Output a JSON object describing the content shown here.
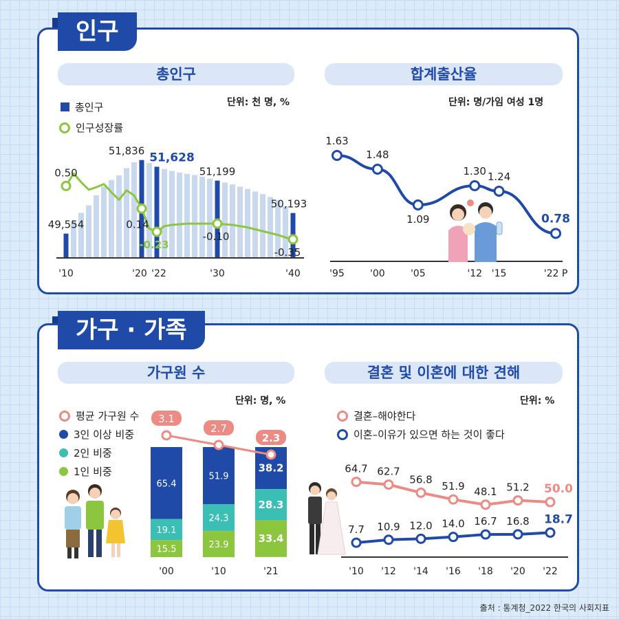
{
  "sections": {
    "population": "인구",
    "household": "가구 · 가족"
  },
  "charts": {
    "total_pop": {
      "title": "총인구",
      "unit": "단위: 천 명, %",
      "legend_bar": "총인구",
      "legend_line": "인구성장률"
    },
    "fertility": {
      "title": "합계출산율",
      "unit": "단위: 명/가임 여성 1명"
    },
    "household_size": {
      "title": "가구원 수",
      "unit": "단위: 명, %",
      "legend": [
        "평균 가구원 수",
        "3인 이상 비중",
        "2인 비중",
        "1인 비중"
      ]
    },
    "marriage": {
      "title": "결혼 및 이혼에 대한 견해",
      "unit": "단위: %",
      "legend": [
        "결혼–해야한다",
        "이혼–이유가 있으면 하는 것이 좋다"
      ]
    }
  },
  "colors": {
    "navy": "#1f4aa8",
    "light_bar": "#c8d8ee",
    "green": "#8cc63e",
    "teal": "#3bbfb4",
    "salmon": "#ec8a84"
  },
  "chart_data": [
    {
      "id": "total_pop",
      "type": "bar",
      "x_ticks": [
        "'10",
        "'20",
        "'22",
        "'30",
        "'40"
      ],
      "highlight_bars": [
        {
          "year": "'10",
          "value": 49554,
          "label": "49,554"
        },
        {
          "year": "'20",
          "value": 51836,
          "label": "51,836"
        },
        {
          "year": "'22",
          "value": 51628,
          "label": "51,628"
        },
        {
          "year": "'30",
          "value": 51199,
          "label": "51,199"
        },
        {
          "year": "'40",
          "value": 50193,
          "label": "50,193"
        }
      ],
      "growth_points": [
        {
          "year": "'10",
          "value": 0.5,
          "label": "0.50"
        },
        {
          "year": "'20",
          "value": 0.14,
          "label": "0.14"
        },
        {
          "year": "'22",
          "value": -0.23,
          "label": "-0.23"
        },
        {
          "year": "'30",
          "value": -0.1,
          "label": "-0.10"
        },
        {
          "year": "'40",
          "value": -0.35,
          "label": "-0.35"
        }
      ],
      "annual_totals": [
        49554,
        49937,
        50200,
        50429,
        50747,
        51015,
        51218,
        51362,
        51585,
        51765,
        51836,
        51745,
        51628,
        51558,
        51500,
        51450,
        51410,
        51370,
        51320,
        51260,
        51199,
        51140,
        51080,
        51010,
        50940,
        50860,
        50780,
        50690,
        50590,
        50400,
        50193
      ],
      "growth_series": [
        0.5,
        0.7,
        0.56,
        0.44,
        0.48,
        0.53,
        0.4,
        0.28,
        0.43,
        0.35,
        0.14,
        -0.18,
        -0.23,
        -0.14,
        -0.12,
        -0.11,
        -0.1,
        -0.1,
        -0.1,
        -0.1,
        -0.1,
        -0.11,
        -0.12,
        -0.14,
        -0.16,
        -0.19,
        -0.22,
        -0.25,
        -0.28,
        -0.32,
        -0.35
      ]
    },
    {
      "id": "fertility",
      "type": "line",
      "x_ticks": [
        "'95",
        "'00",
        "'05",
        "'12",
        "'15",
        "'22 P"
      ],
      "points": [
        {
          "year": "'95",
          "value": 1.63
        },
        {
          "year": "'00",
          "value": 1.48
        },
        {
          "year": "'05",
          "value": 1.09
        },
        {
          "year": "'12",
          "value": 1.3
        },
        {
          "year": "'15",
          "value": 1.24
        },
        {
          "year": "'22",
          "value": 0.78
        }
      ],
      "labels": [
        "1.63",
        "1.48",
        "1.09",
        "1.30",
        "1.24",
        "0.78"
      ]
    },
    {
      "id": "household_size",
      "type": "bar",
      "categories": [
        "'00",
        "'10",
        "'21"
      ],
      "series": [
        {
          "name": "3인 이상 비중",
          "values": [
            65.4,
            51.9,
            38.2
          ]
        },
        {
          "name": "2인 비중",
          "values": [
            19.1,
            24.3,
            28.3
          ]
        },
        {
          "name": "1인 비중",
          "values": [
            15.5,
            23.9,
            33.4
          ]
        }
      ],
      "average_size": [
        3.1,
        2.7,
        2.3
      ],
      "labels": {
        "three_plus": [
          "65.4",
          "51.9",
          "38.2"
        ],
        "two": [
          "19.1",
          "24.3",
          "28.3"
        ],
        "one": [
          "15.5",
          "23.9",
          "33.4"
        ],
        "avg": [
          "3.1",
          "2.7",
          "2.3"
        ]
      }
    },
    {
      "id": "marriage",
      "type": "line",
      "x_ticks": [
        "'10",
        "'12",
        "'14",
        "'16",
        "'18",
        "'20",
        "'22"
      ],
      "series": [
        {
          "name": "결혼–해야한다",
          "values": [
            64.7,
            62.7,
            56.8,
            51.9,
            48.1,
            51.2,
            50.0
          ]
        },
        {
          "name": "이혼–이유가 있으면 하는 것이 좋다",
          "values": [
            7.7,
            10.9,
            12.0,
            14.0,
            16.7,
            16.8,
            18.7
          ]
        }
      ],
      "labels": {
        "marriage": [
          "64.7",
          "62.7",
          "56.8",
          "51.9",
          "48.1",
          "51.2",
          "50.0"
        ],
        "divorce": [
          "7.7",
          "10.9",
          "12.0",
          "14.0",
          "16.7",
          "16.8",
          "18.7"
        ]
      }
    }
  ],
  "source": "출처 : 통계청_2022 한국의 사회지표"
}
